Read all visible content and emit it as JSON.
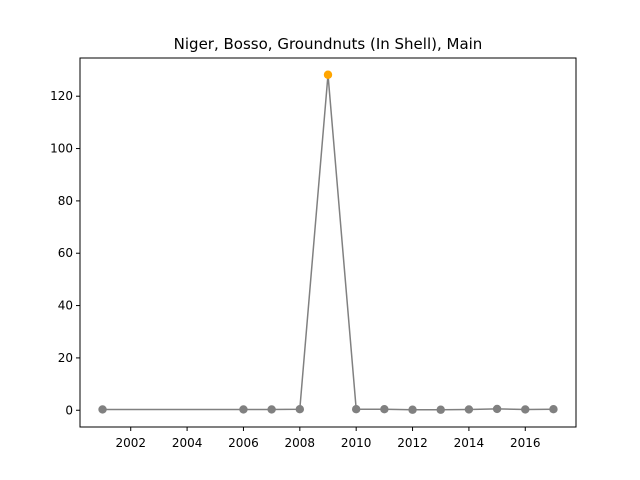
{
  "chart_data": {
    "type": "line",
    "title": "Niger, Bosso, Groundnuts (In Shell), Main",
    "xlabel": "",
    "ylabel": "",
    "xlim": [
      2000.2,
      2017.8
    ],
    "ylim": [
      -6.4,
      134.6
    ],
    "x_ticks": [
      2002,
      2004,
      2006,
      2008,
      2010,
      2012,
      2014,
      2016
    ],
    "y_ticks": [
      0,
      20,
      40,
      60,
      80,
      100,
      120
    ],
    "grid": false,
    "series": [
      {
        "x": [
          2001,
          2006,
          2007,
          2008,
          2009,
          2010,
          2011,
          2012,
          2013,
          2014,
          2015,
          2016,
          2017
        ],
        "y": [
          0.3,
          0.3,
          0.3,
          0.4,
          128.2,
          0.4,
          0.4,
          0.2,
          0.2,
          0.3,
          0.5,
          0.3,
          0.4
        ],
        "line_color": "#808080",
        "marker_color": "#808080"
      }
    ],
    "highlight": {
      "x": 2009,
      "y": 128.2,
      "color": "#ffa500"
    }
  }
}
